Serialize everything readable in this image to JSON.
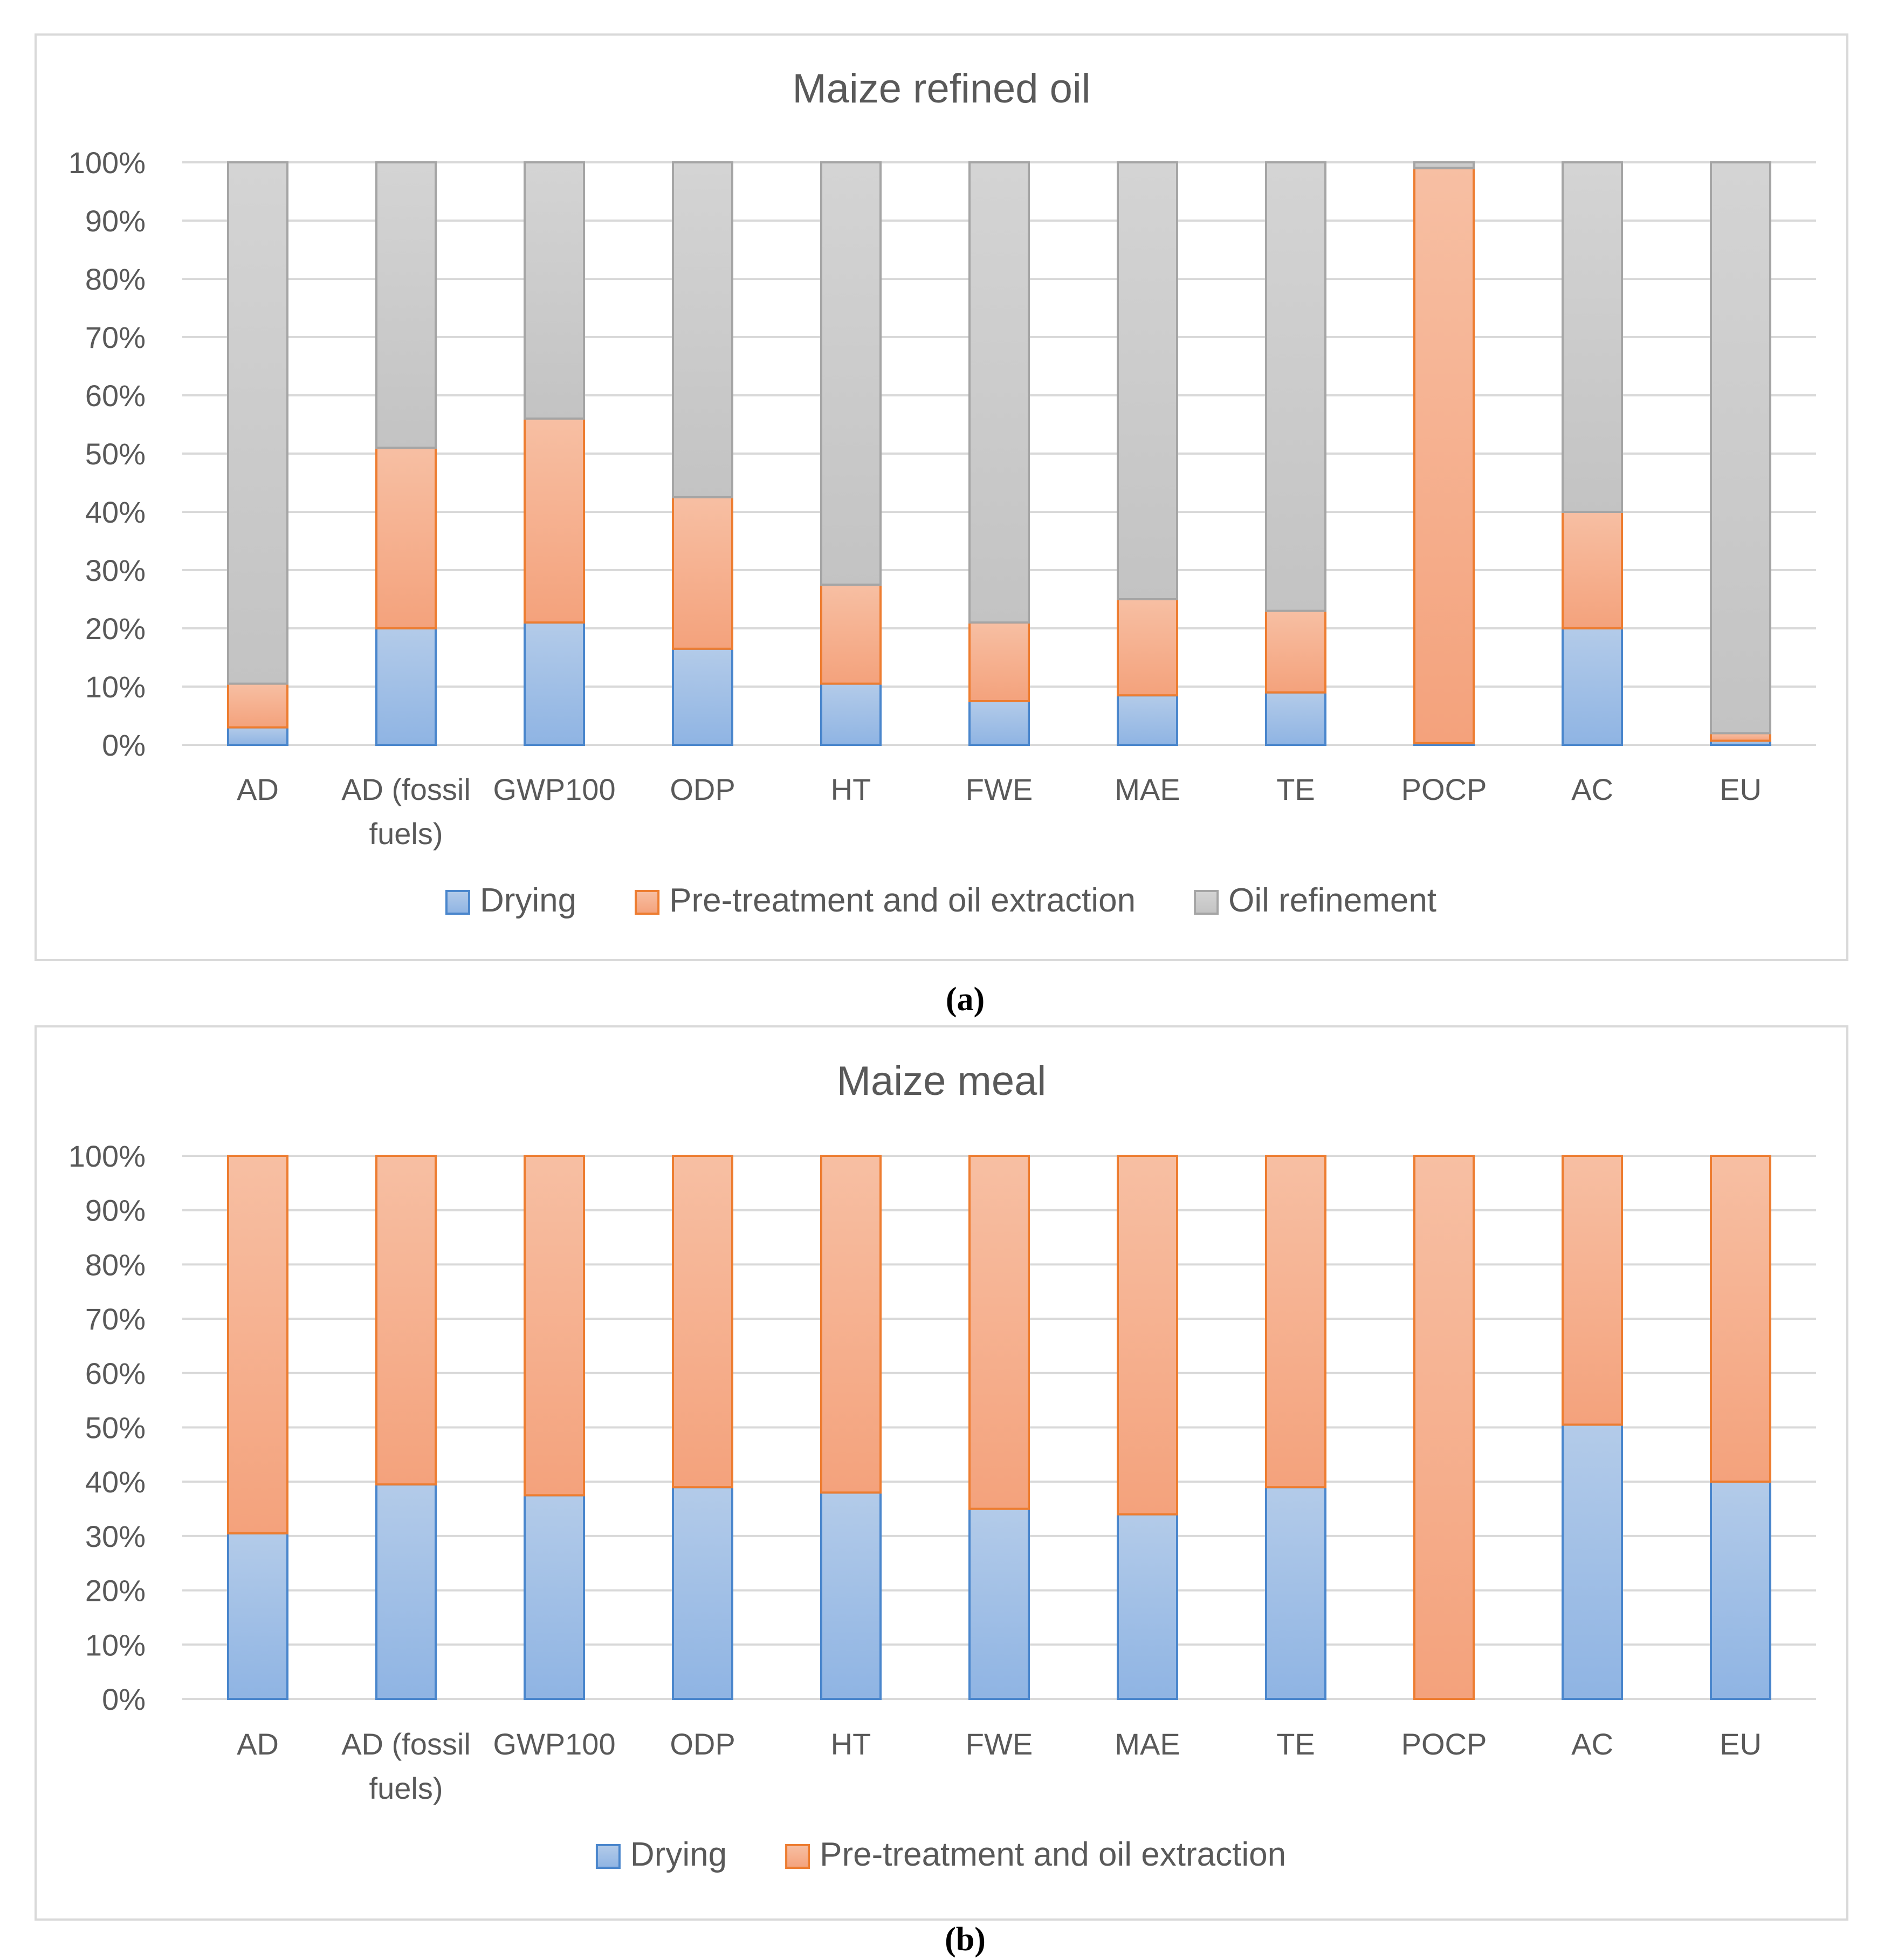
{
  "chart_data": [
    {
      "type": "bar",
      "stacked": true,
      "percent": true,
      "title": "Maize refined oil",
      "caption": "(a)",
      "categories": [
        "AD",
        "AD (fossil fuels)",
        "GWP100",
        "ODP",
        "HT",
        "FWE",
        "MAE",
        "TE",
        "POCP",
        "AC",
        "EU"
      ],
      "category_lines": [
        [
          "AD"
        ],
        [
          "AD (fossil",
          "fuels)"
        ],
        [
          "GWP100"
        ],
        [
          "ODP"
        ],
        [
          "HT"
        ],
        [
          "FWE"
        ],
        [
          "MAE"
        ],
        [
          "TE"
        ],
        [
          "POCP"
        ],
        [
          "AC"
        ],
        [
          "EU"
        ]
      ],
      "series": [
        {
          "name": "Drying",
          "values": [
            3,
            20,
            21,
            16.5,
            10.5,
            7.5,
            8.5,
            9,
            0.3,
            20,
            0.7
          ]
        },
        {
          "name": "Pre-treatment and oil extraction",
          "values": [
            7.5,
            31,
            35,
            26,
            17,
            13.5,
            16.5,
            14,
            98.7,
            20,
            1.3
          ]
        },
        {
          "name": "Oil refinement",
          "values": [
            89.5,
            49,
            44,
            57.5,
            72.5,
            79,
            75,
            77,
            1,
            60,
            98
          ]
        }
      ],
      "yticks": [
        "0%",
        "10%",
        "20%",
        "30%",
        "40%",
        "50%",
        "60%",
        "70%",
        "80%",
        "90%",
        "100%"
      ],
      "ylim": [
        0,
        100
      ],
      "xlabel": "",
      "ylabel": "",
      "legend_position": "bottom"
    },
    {
      "type": "bar",
      "stacked": true,
      "percent": true,
      "title": "Maize meal",
      "caption": "(b)",
      "categories": [
        "AD",
        "AD (fossil fuels)",
        "GWP100",
        "ODP",
        "HT",
        "FWE",
        "MAE",
        "TE",
        "POCP",
        "AC",
        "EU"
      ],
      "category_lines": [
        [
          "AD"
        ],
        [
          "AD (fossil",
          "fuels)"
        ],
        [
          "GWP100"
        ],
        [
          "ODP"
        ],
        [
          "HT"
        ],
        [
          "FWE"
        ],
        [
          "MAE"
        ],
        [
          "TE"
        ],
        [
          "POCP"
        ],
        [
          "AC"
        ],
        [
          "EU"
        ]
      ],
      "series": [
        {
          "name": "Drying",
          "values": [
            30.5,
            39.5,
            37.5,
            39,
            38,
            35,
            34,
            39,
            0,
            50.5,
            40
          ]
        },
        {
          "name": "Pre-treatment and oil extraction",
          "values": [
            69.5,
            60.5,
            62.5,
            61,
            62,
            65,
            66,
            61,
            100,
            49.5,
            60
          ]
        }
      ],
      "yticks": [
        "0%",
        "10%",
        "20%",
        "30%",
        "40%",
        "50%",
        "60%",
        "70%",
        "80%",
        "90%",
        "100%"
      ],
      "ylim": [
        0,
        100
      ],
      "xlabel": "",
      "ylabel": "",
      "legend_position": "bottom"
    }
  ],
  "colors": {
    "Drying": {
      "top": "#b3cbe9",
      "bottom": "#8fb4e3",
      "stroke": "#4a86cc"
    },
    "Pre-treatment and oil extraction": {
      "top": "#f7bfa3",
      "bottom": "#f4a27c",
      "stroke": "#ed7d31"
    },
    "Oil refinement": {
      "top": "#d4d4d4",
      "bottom": "#c3c3c3",
      "stroke": "#a5a5a5"
    },
    "grid": "#d9d9d9",
    "frame": "#d9d9d9",
    "text": "#595959"
  }
}
